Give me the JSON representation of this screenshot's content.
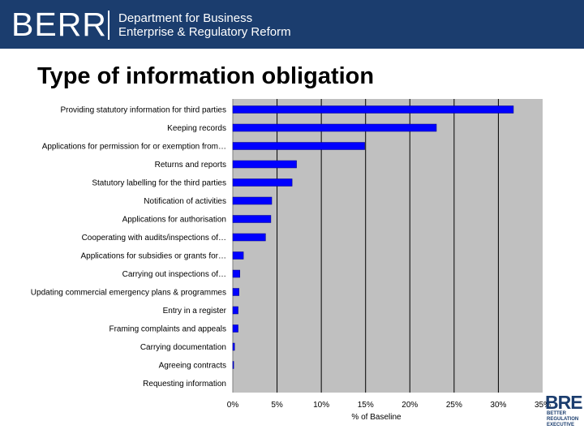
{
  "header": {
    "logo": "BERR",
    "dept_line1": "Department for Business",
    "dept_line2": "Enterprise & Regulatory Reform",
    "background_color": "#1b3d6e"
  },
  "slide_title": "Type of information obligation",
  "footer_logo": {
    "main": "BRE",
    "line1": "BETTER",
    "line2": "REGULATION",
    "line3": "EXECUTIVE"
  },
  "chart_data": {
    "type": "bar",
    "orientation": "horizontal",
    "categories": [
      "Providing statutory information for third parties",
      "Keeping records",
      "Applications for permission for or exemption from…",
      "Returns and reports",
      "Statutory labelling for the third parties",
      "Notification of activities",
      "Applications for authorisation",
      "Cooperating with audits/inspections of…",
      "Applications for subsidies or grants for…",
      "Carrying out inspections of…",
      "Updating commercial emergency plans & programmes",
      "Entry in a register",
      "Framing complaints and appeals",
      "Carrying documentation",
      "Agreeing contracts",
      "Requesting information"
    ],
    "values": [
      31.7,
      23.0,
      14.9,
      7.2,
      6.7,
      4.4,
      4.3,
      3.7,
      1.2,
      0.8,
      0.7,
      0.6,
      0.6,
      0.2,
      0.1,
      0.0
    ],
    "xlabel": "% of Baseline",
    "ylabel": "",
    "xlim": [
      0,
      35
    ],
    "tick_values": [
      0,
      5,
      10,
      15,
      20,
      25,
      30,
      35
    ],
    "tick_labels": [
      "0%",
      "5%",
      "10%",
      "15%",
      "20%",
      "25%",
      "30%",
      "35%"
    ],
    "grid": true,
    "legend": "none",
    "bar_color": "#0000ff",
    "plot_background": "#c0c0c0",
    "gridline_color": "#000000"
  }
}
